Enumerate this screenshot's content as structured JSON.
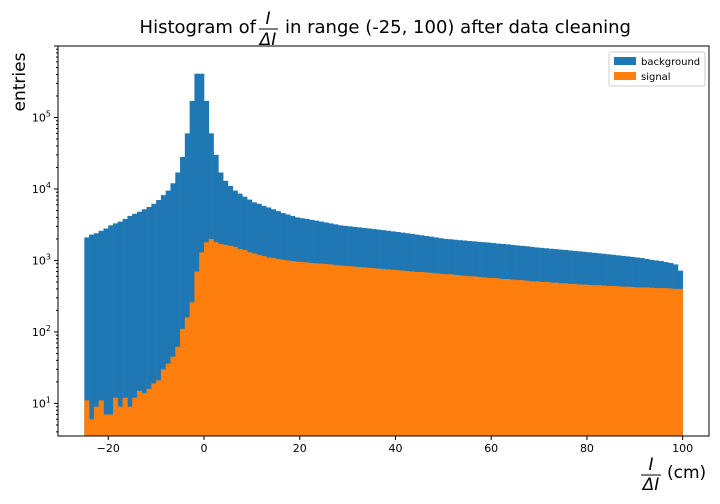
{
  "chart_data": {
    "type": "bar",
    "title": {
      "prefix": "Histogram of",
      "frac_numerator": "I",
      "frac_denominator": "ΔI",
      "suffix": "in range (-25, 100) after data cleaning"
    },
    "xlabel": {
      "frac_numerator": "I",
      "frac_denominator": "ΔI",
      "unit": "(cm)"
    },
    "ylabel": "entries",
    "yscale": "log",
    "xlim": [
      -30.5,
      105.5
    ],
    "ylim": [
      3.5,
      1000000
    ],
    "x_ticks": [
      -20,
      0,
      20,
      40,
      60,
      80,
      100
    ],
    "x_tick_labels": [
      "−20",
      "0",
      "20",
      "40",
      "60",
      "80",
      "100"
    ],
    "y_ticks": [
      10,
      100,
      1000,
      10000,
      100000
    ],
    "y_tick_labels": [
      {
        "base": "10",
        "exp": "1"
      },
      {
        "base": "10",
        "exp": "2"
      },
      {
        "base": "10",
        "exp": "3"
      },
      {
        "base": "10",
        "exp": "4"
      },
      {
        "base": "10",
        "exp": "5"
      }
    ],
    "legend_position": "top-right",
    "grid": false,
    "bin_edges": [
      -25,
      100
    ],
    "bin_count": 125,
    "series": [
      {
        "name": "background",
        "color": "#1f77b4",
        "values": [
          2100,
          2300,
          2400,
          2600,
          2800,
          3100,
          3300,
          3500,
          3800,
          4200,
          4500,
          4800,
          5200,
          5600,
          6200,
          7000,
          8200,
          9500,
          12000,
          17000,
          28000,
          60000,
          170000,
          410000,
          410000,
          170000,
          60000,
          30000,
          17000,
          13000,
          11000,
          9500,
          8600,
          7800,
          7100,
          6500,
          6200,
          5800,
          5500,
          5200,
          4900,
          4600,
          4400,
          4200,
          4000,
          3900,
          3800,
          3700,
          3600,
          3500,
          3400,
          3300,
          3200,
          3100,
          3050,
          3000,
          2950,
          2900,
          2850,
          2800,
          2750,
          2700,
          2650,
          2600,
          2550,
          2500,
          2450,
          2400,
          2350,
          2300,
          2250,
          2200,
          2150,
          2100,
          2050,
          2000,
          1980,
          1950,
          1920,
          1900,
          1870,
          1850,
          1820,
          1800,
          1780,
          1750,
          1720,
          1700,
          1680,
          1650,
          1620,
          1600,
          1580,
          1550,
          1520,
          1500,
          1480,
          1460,
          1440,
          1420,
          1400,
          1380,
          1360,
          1340,
          1320,
          1300,
          1280,
          1260,
          1240,
          1220,
          1200,
          1180,
          1160,
          1140,
          1120,
          1100,
          1080,
          1050,
          1020,
          1000,
          980,
          950,
          920,
          880,
          720
        ]
      },
      {
        "name": "signal",
        "color": "#ff7f0e",
        "values": [
          11,
          6,
          9,
          11,
          7,
          7,
          12,
          9,
          12,
          9,
          12,
          15,
          14,
          16,
          19,
          21,
          30,
          36,
          45,
          62,
          110,
          160,
          260,
          700,
          1300,
          1800,
          2000,
          1800,
          1700,
          1650,
          1600,
          1550,
          1450,
          1400,
          1300,
          1250,
          1200,
          1150,
          1100,
          1080,
          1050,
          1020,
          1000,
          980,
          960,
          950,
          940,
          920,
          910,
          900,
          890,
          880,
          860,
          850,
          840,
          830,
          820,
          810,
          800,
          790,
          780,
          770,
          760,
          750,
          740,
          730,
          720,
          710,
          700,
          690,
          690,
          680,
          670,
          660,
          650,
          640,
          640,
          630,
          620,
          610,
          600,
          600,
          590,
          580,
          570,
          570,
          560,
          550,
          550,
          540,
          530,
          530,
          520,
          510,
          510,
          500,
          500,
          490,
          490,
          480,
          480,
          470,
          470,
          460,
          460,
          455,
          450,
          450,
          445,
          440,
          440,
          435,
          430,
          430,
          425,
          420,
          420,
          420,
          415,
          410,
          410,
          410,
          405,
          400,
          400
        ]
      }
    ]
  }
}
